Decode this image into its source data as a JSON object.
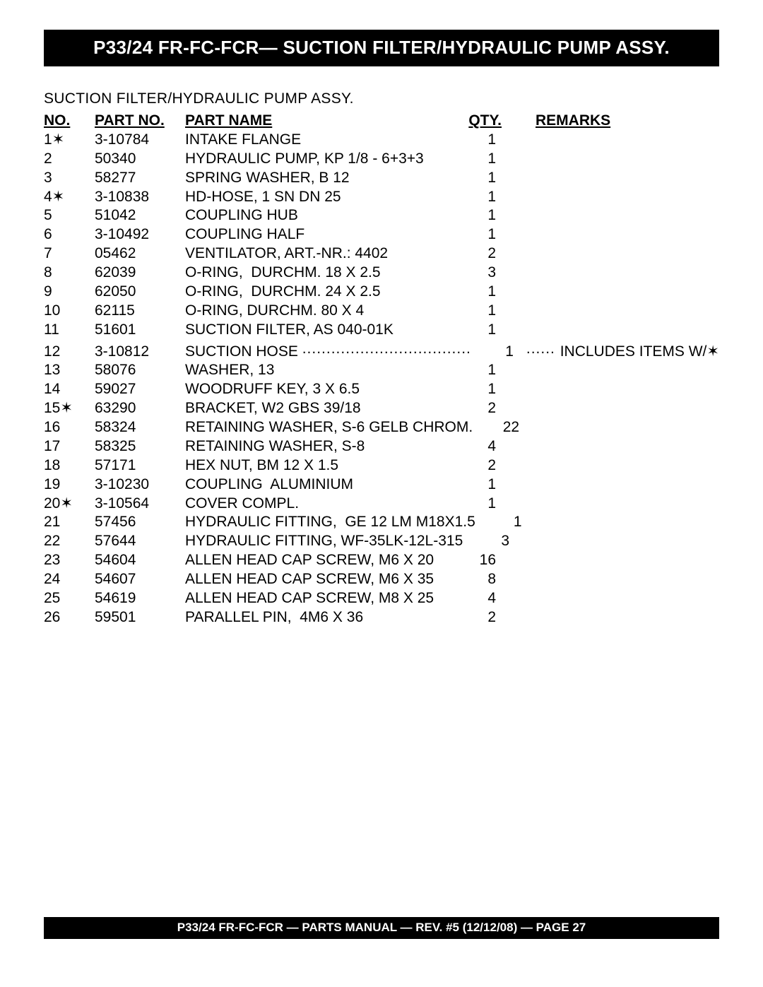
{
  "title": "P33/24 FR-FC-FCR— SUCTION FILTER/HYDRAULIC PUMP ASSY.",
  "subtitle": "SUCTION FILTER/HYDRAULIC PUMP ASSY.",
  "footer": "P33/24 FR-FC-FCR — PARTS MANUAL — REV. #5 (12/12/08) — PAGE 27",
  "headers": {
    "no": "NO.",
    "partno": "PART NO.",
    "partname": "PART NAME",
    "qty": "QTY.",
    "remarks": "REMARKS"
  },
  "rows": [
    {
      "no": "1",
      "star": true,
      "partno": "3-10784",
      "name": "INTAKE FLANGE",
      "qty": "1",
      "remarks": ""
    },
    {
      "no": "2",
      "star": false,
      "partno": "50340",
      "name": "HYDRAULIC PUMP, KP 1/8 - 6+3+3",
      "qty": "1",
      "remarks": ""
    },
    {
      "no": "3",
      "star": false,
      "partno": "58277",
      "name": "SPRING WASHER, B 12",
      "qty": "1",
      "remarks": ""
    },
    {
      "no": "4",
      "star": true,
      "partno": "3-10838",
      "name": "HD-HOSE, 1 SN DN 25",
      "qty": "1",
      "remarks": ""
    },
    {
      "no": "5",
      "star": false,
      "partno": "51042",
      "name": "COUPLING HUB",
      "qty": "1",
      "remarks": ""
    },
    {
      "no": "6",
      "star": false,
      "partno": "3-10492",
      "name": "COUPLING HALF",
      "qty": "1",
      "remarks": ""
    },
    {
      "no": "7",
      "star": false,
      "partno": "05462",
      "name": "VENTILATOR, ART.-NR.: 4402",
      "qty": "2",
      "remarks": ""
    },
    {
      "no": "8",
      "star": false,
      "partno": "62039",
      "name": "O-RING,  DURCHM. 18 X 2.5",
      "qty": "3",
      "remarks": ""
    },
    {
      "no": "9",
      "star": false,
      "partno": "62050",
      "name": "O-RING,  DURCHM. 24 X 2.5",
      "qty": "1",
      "remarks": ""
    },
    {
      "no": "10",
      "star": false,
      "partno": "62115",
      "name": "O-RING, DURCHM. 80 X 4",
      "qty": "1",
      "remarks": ""
    },
    {
      "no": "11",
      "star": false,
      "partno": "51601",
      "name": "SUCTION FILTER, AS 040-01K",
      "qty": "1",
      "remarks": ""
    },
    {
      "no": "12",
      "star": false,
      "partno": "3-10812",
      "name": "SUCTION HOSE",
      "qty": "1",
      "remarks": "INCLUDES ITEMS W/✶",
      "dotted": true
    },
    {
      "no": "13",
      "star": false,
      "partno": "58076",
      "name": "WASHER, 13",
      "qty": "1",
      "remarks": ""
    },
    {
      "no": "14",
      "star": false,
      "partno": "59027",
      "name": "WOODRUFF KEY, 3 X 6.5",
      "qty": "1",
      "remarks": ""
    },
    {
      "no": "15",
      "star": true,
      "partno": "63290",
      "name": "BRACKET, W2 GBS 39/18",
      "qty": "2",
      "remarks": ""
    },
    {
      "no": "16",
      "star": false,
      "partno": "58324",
      "name": "RETAINING WASHER, S-6 GELB CHROM.",
      "qty": "22",
      "remarks": ""
    },
    {
      "no": "17",
      "star": false,
      "partno": "58325",
      "name": "RETAINING WASHER, S-8",
      "qty": "4",
      "remarks": ""
    },
    {
      "no": "18",
      "star": false,
      "partno": "57171",
      "name": "HEX NUT, BM 12 X 1.5",
      "qty": "2",
      "remarks": ""
    },
    {
      "no": "19",
      "star": false,
      "partno": "3-10230",
      "name": "COUPLING  ALUMINIUM",
      "qty": "1",
      "remarks": ""
    },
    {
      "no": "20",
      "star": true,
      "partno": "3-10564",
      "name": "COVER COMPL.",
      "qty": "1",
      "remarks": ""
    },
    {
      "no": "21",
      "star": false,
      "partno": "57456",
      "name": "HYDRAULIC FITTING,  GE 12 LM M18X1.5",
      "qty": "1",
      "remarks": ""
    },
    {
      "no": "22",
      "star": false,
      "partno": "57644",
      "name": "HYDRAULIC FITTING, WF-35LK-12L-315",
      "qty": "3",
      "remarks": ""
    },
    {
      "no": "23",
      "star": false,
      "partno": "54604",
      "name": "ALLEN HEAD CAP SCREW, M6 X 20",
      "qty": "16",
      "remarks": ""
    },
    {
      "no": "24",
      "star": false,
      "partno": "54607",
      "name": "ALLEN HEAD CAP SCREW, M6 X 35",
      "qty": "8",
      "remarks": ""
    },
    {
      "no": "25",
      "star": false,
      "partno": "54619",
      "name": "ALLEN HEAD CAP SCREW, M8 X 25",
      "qty": "4",
      "remarks": ""
    },
    {
      "no": "26",
      "star": false,
      "partno": "59501",
      "name": "PARALLEL PIN,  4M6 X 36",
      "qty": "2",
      "remarks": ""
    }
  ]
}
